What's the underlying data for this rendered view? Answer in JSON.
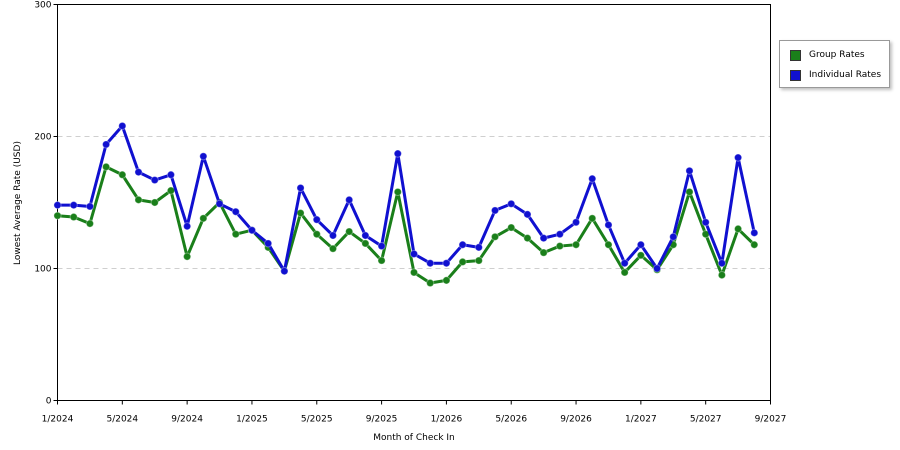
{
  "chart_data": {
    "type": "line",
    "xlabel": "Month of Check In",
    "ylabel": "Lowest Average Rate (USD)",
    "ylim": [
      0,
      300
    ],
    "yticks": [
      0,
      100,
      200,
      300
    ],
    "x_tick_labels": [
      "1/2024",
      "5/2024",
      "9/2024",
      "1/2025",
      "5/2025",
      "9/2025",
      "1/2026",
      "5/2026",
      "9/2026",
      "1/2027",
      "5/2027",
      "9/2027"
    ],
    "grid": "horizontal dashed",
    "legend_position": "right",
    "x": [
      "1/2024",
      "2/2024",
      "3/2024",
      "4/2024",
      "5/2024",
      "6/2024",
      "7/2024",
      "8/2024",
      "9/2024",
      "10/2024",
      "11/2024",
      "12/2024",
      "1/2025",
      "2/2025",
      "3/2025",
      "4/2025",
      "5/2025",
      "6/2025",
      "7/2025",
      "8/2025",
      "9/2025",
      "10/2025",
      "11/2025",
      "12/2025",
      "1/2026",
      "2/2026",
      "3/2026",
      "4/2026",
      "5/2026",
      "6/2026",
      "7/2026",
      "8/2026",
      "9/2026",
      "10/2026",
      "11/2026",
      "12/2026",
      "1/2027",
      "2/2027",
      "3/2027",
      "4/2027",
      "5/2027",
      "6/2027",
      "7/2027",
      "8/2027",
      "9/2027"
    ],
    "series": [
      {
        "name": "Group Rates",
        "color": "#1a7f1a",
        "values": [
          140,
          139,
          134,
          177,
          171,
          152,
          150,
          159,
          109,
          138,
          150,
          126,
          129,
          116,
          98,
          142,
          126,
          115,
          128,
          119,
          106,
          158,
          97,
          89,
          91,
          105,
          106,
          124,
          131,
          123,
          112,
          117,
          118,
          138,
          118,
          97,
          110,
          99,
          118,
          158,
          126,
          95,
          130,
          118,
          null
        ]
      },
      {
        "name": "Individual Rates",
        "color": "#1010d0",
        "values": [
          148,
          148,
          147,
          194,
          208,
          173,
          167,
          171,
          132,
          185,
          149,
          143,
          129,
          119,
          98,
          161,
          137,
          125,
          152,
          125,
          117,
          187,
          111,
          104,
          104,
          118,
          116,
          144,
          149,
          141,
          123,
          126,
          135,
          168,
          133,
          104,
          118,
          100,
          124,
          174,
          135,
          104,
          184,
          127,
          null
        ]
      }
    ]
  }
}
